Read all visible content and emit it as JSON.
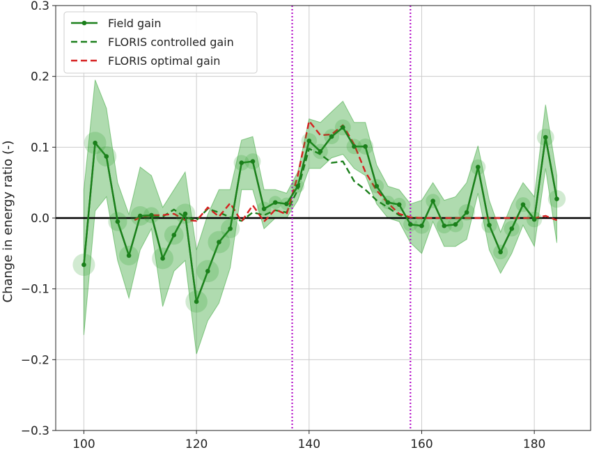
{
  "chart_data": {
    "type": "line",
    "title": "",
    "xlabel": "",
    "ylabel": "Change in energy ratio (-)",
    "xlim": [
      95,
      190
    ],
    "ylim": [
      -0.3,
      0.3
    ],
    "xticks": [
      100,
      120,
      140,
      160,
      180
    ],
    "yticks": [
      -0.3,
      -0.2,
      -0.1,
      0.0,
      0.1,
      0.2,
      0.3
    ],
    "xtick_labels": [
      "100",
      "120",
      "140",
      "160",
      "180"
    ],
    "ytick_labels": [
      "−0.3",
      "−0.2",
      "−0.1",
      "0.0",
      "0.1",
      "0.2",
      "0.3"
    ],
    "grid": true,
    "legend_position": "top-left",
    "reference_lines": [
      {
        "kind": "horizontal",
        "value": 0.0,
        "color": "#000000",
        "style": "solid"
      },
      {
        "kind": "vertical",
        "value": 137,
        "color": "#b30cc8",
        "style": "dotted"
      },
      {
        "kind": "vertical",
        "value": 158,
        "color": "#b30cc8",
        "style": "dotted"
      }
    ],
    "series": [
      {
        "name": "Field gain",
        "color": "#1a7f1a",
        "style": "solid-markers",
        "x": [
          100,
          102,
          104,
          106,
          108,
          110,
          112,
          114,
          116,
          118,
          120,
          122,
          124,
          126,
          128,
          130,
          132,
          134,
          136,
          138,
          140,
          142,
          144,
          146,
          148,
          150,
          152,
          154,
          156,
          158,
          160,
          162,
          164,
          166,
          168,
          170,
          172,
          174,
          176,
          178,
          180,
          182,
          184
        ],
        "values": [
          -0.066,
          0.106,
          0.087,
          -0.005,
          -0.053,
          0.003,
          0.004,
          -0.057,
          -0.024,
          0.006,
          -0.118,
          -0.075,
          -0.034,
          -0.015,
          0.078,
          0.08,
          0.013,
          0.022,
          0.02,
          0.045,
          0.109,
          0.094,
          0.115,
          0.128,
          0.101,
          0.101,
          0.045,
          0.022,
          0.019,
          -0.009,
          -0.011,
          0.024,
          -0.011,
          -0.009,
          0.008,
          0.072,
          -0.01,
          -0.048,
          -0.015,
          0.019,
          -0.002,
          0.114,
          0.027
        ],
        "lower": [
          -0.165,
          0.01,
          0.03,
          -0.06,
          -0.113,
          -0.045,
          -0.015,
          -0.125,
          -0.075,
          -0.06,
          -0.192,
          -0.145,
          -0.12,
          -0.07,
          0.04,
          0.04,
          -0.015,
          0.0,
          0.0,
          0.025,
          0.07,
          0.07,
          0.085,
          0.09,
          0.07,
          0.06,
          0.02,
          0.0,
          -0.005,
          -0.035,
          -0.05,
          -0.005,
          -0.04,
          -0.04,
          -0.03,
          0.035,
          -0.045,
          -0.078,
          -0.05,
          -0.01,
          -0.04,
          0.07,
          -0.035
        ],
        "upper": [
          0.04,
          0.195,
          0.155,
          0.05,
          0.005,
          0.072,
          0.06,
          0.015,
          0.04,
          0.065,
          -0.045,
          0.005,
          0.04,
          0.04,
          0.11,
          0.115,
          0.04,
          0.04,
          0.035,
          0.065,
          0.14,
          0.135,
          0.15,
          0.165,
          0.135,
          0.135,
          0.075,
          0.045,
          0.04,
          0.02,
          0.025,
          0.05,
          0.025,
          0.03,
          0.05,
          0.102,
          0.025,
          -0.02,
          0.02,
          0.05,
          0.03,
          0.16,
          0.06
        ]
      },
      {
        "name": "FLORIS controlled gain",
        "color": "#1a7f1a",
        "style": "dashed",
        "x": [
          109,
          110,
          112,
          114,
          116,
          118,
          120,
          122,
          124,
          126,
          128,
          130,
          132,
          134,
          136,
          138,
          140,
          142,
          144,
          146,
          148,
          150,
          152,
          154,
          156,
          158,
          160
        ],
        "values": [
          -0.002,
          0.003,
          0.003,
          0.002,
          0.012,
          0.001,
          -0.003,
          0.013,
          0.008,
          0.001,
          -0.004,
          0.008,
          0.004,
          0.011,
          0.008,
          0.04,
          0.098,
          0.09,
          0.078,
          0.08,
          0.052,
          0.04,
          0.025,
          0.015,
          0.004,
          0.001,
          0.0
        ]
      },
      {
        "name": "FLORIS optimal gain",
        "color": "#d62020",
        "style": "dashed",
        "x": [
          109,
          110,
          112,
          114,
          116,
          118,
          120,
          122,
          124,
          126,
          128,
          130,
          132,
          134,
          136,
          138,
          140,
          142,
          144,
          146,
          148,
          150,
          152,
          154,
          156,
          158,
          160,
          164,
          168,
          172,
          176,
          180,
          182,
          184
        ],
        "values": [
          -0.003,
          0.001,
          0.004,
          0.004,
          0.006,
          -0.003,
          -0.004,
          0.015,
          0.002,
          0.021,
          -0.005,
          0.018,
          -0.005,
          0.012,
          0.005,
          0.06,
          0.137,
          0.117,
          0.118,
          0.131,
          0.104,
          0.065,
          0.039,
          0.021,
          0.006,
          0.001,
          0.0,
          0.0,
          0.0,
          0.0,
          0.0,
          0.0,
          0.003,
          -0.003
        ]
      }
    ]
  }
}
